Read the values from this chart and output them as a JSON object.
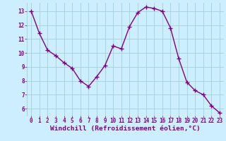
{
  "x": [
    0,
    1,
    2,
    3,
    4,
    5,
    6,
    7,
    8,
    9,
    10,
    11,
    12,
    13,
    14,
    15,
    16,
    17,
    18,
    19,
    20,
    21,
    22,
    23
  ],
  "y": [
    13.0,
    11.4,
    10.2,
    9.8,
    9.3,
    8.9,
    8.0,
    7.6,
    8.3,
    9.1,
    10.5,
    10.3,
    11.9,
    12.9,
    13.3,
    13.2,
    13.0,
    11.8,
    9.6,
    7.9,
    7.3,
    7.0,
    6.2,
    5.7
  ],
  "line_color": "#800080",
  "marker": "P",
  "marker_size": 3,
  "bg_color": "#cceeff",
  "grid_color": "#99cccc",
  "xlabel": "Windchill (Refroidissement éolien,°C)",
  "xlabel_color": "#800080",
  "ylim": [
    5.5,
    13.6
  ],
  "xlim": [
    -0.5,
    23.5
  ],
  "yticks": [
    6,
    7,
    8,
    9,
    10,
    11,
    12,
    13
  ],
  "xticks": [
    0,
    1,
    2,
    3,
    4,
    5,
    6,
    7,
    8,
    9,
    10,
    11,
    12,
    13,
    14,
    15,
    16,
    17,
    18,
    19,
    20,
    21,
    22,
    23
  ],
  "tick_color": "#800080",
  "tick_fontsize": 5.5,
  "xlabel_fontsize": 6.8,
  "line_width": 1.0
}
